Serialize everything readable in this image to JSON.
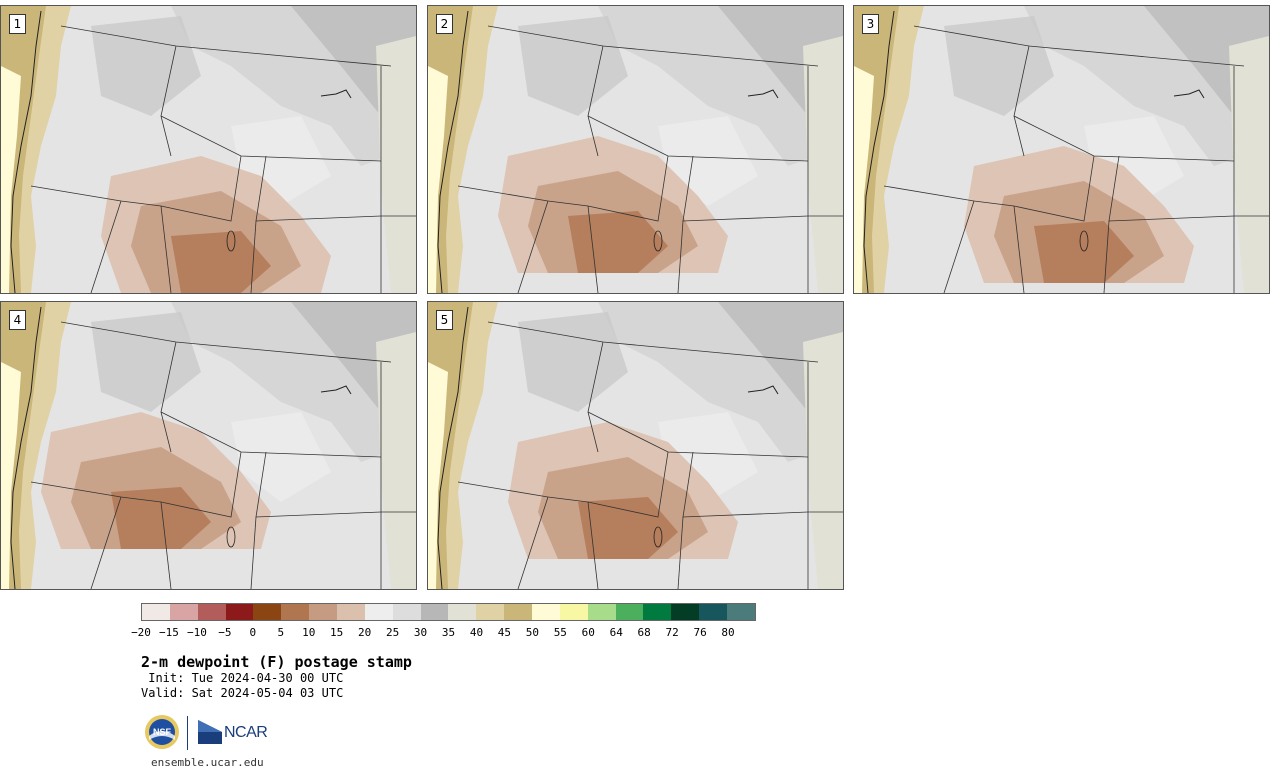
{
  "panels": [
    {
      "label": "1"
    },
    {
      "label": "2"
    },
    {
      "label": "3"
    },
    {
      "label": "4"
    },
    {
      "label": "5"
    }
  ],
  "colorbar": {
    "colors": [
      "#f1e9e6",
      "#d8a4a4",
      "#b25c5c",
      "#8c1a1a",
      "#8a4512",
      "#b07650",
      "#c59c82",
      "#dcc0ae",
      "#eeeeee",
      "#dddddd",
      "#b7b7b7",
      "#e1e1d6",
      "#e1d2a6",
      "#cbb679",
      "#fffbd6",
      "#f7f7a4",
      "#a7dc8a",
      "#4caf5d",
      "#007a3f",
      "#033d26",
      "#17565c",
      "#4b7b7b"
    ],
    "tick_labels": [
      "−20",
      "−15",
      "−10",
      "−5",
      "0",
      "5",
      "10",
      "15",
      "20",
      "25",
      "30",
      "35",
      "40",
      "45",
      "50",
      "55",
      "60",
      "64",
      "68",
      "72",
      "76",
      "80"
    ]
  },
  "title": "2-m dewpoint (F) postage stamp",
  "init_line": " Init: Tue 2024-04-30 00 UTC",
  "valid_line": "Valid: Sat 2024-05-04 03 UTC",
  "logos": {
    "nsf_text": "NSF",
    "ncar_text": "NCAR"
  },
  "site": "ensemble.ucar.edu",
  "colors": {
    "ocean": "#fffbd6",
    "coast_tan": "#cbb679",
    "light_tan": "#e1d2a6",
    "pale_gray": "#e1e1d6",
    "mid_gray": "#b7b7b7",
    "light_gray": "#dddddd",
    "brown_light": "#dcc0ae",
    "brown_mid": "#c59c82",
    "brown_dark": "#b07650",
    "brown_deep": "#8a4512",
    "red_deep": "#8c1a1a"
  }
}
